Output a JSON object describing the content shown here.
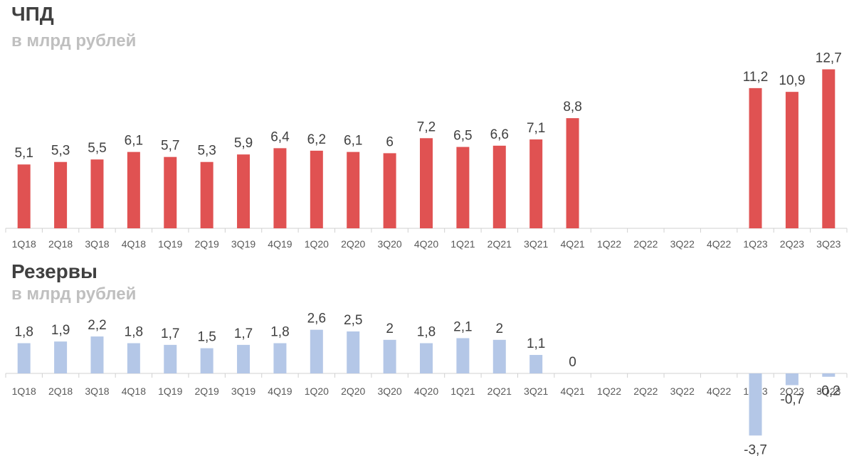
{
  "charts": {
    "top": {
      "title": "ЧПД",
      "subtitle": "в млрд рублей"
    },
    "bottom": {
      "title": "Резервы",
      "subtitle": "в млрд рублей"
    }
  },
  "colors": {
    "top_bar": "#e05252",
    "bottom_bar": "#b4c7e7",
    "axis": "#d0d0d0"
  },
  "chart_data": [
    {
      "type": "bar",
      "title": "ЧПД",
      "subtitle": "в млрд рублей",
      "categories": [
        "1Q18",
        "2Q18",
        "3Q18",
        "4Q18",
        "1Q19",
        "2Q19",
        "3Q19",
        "4Q19",
        "1Q20",
        "2Q20",
        "3Q20",
        "4Q20",
        "1Q21",
        "2Q21",
        "3Q21",
        "4Q21",
        "1Q22",
        "2Q22",
        "3Q22",
        "4Q22",
        "1Q23",
        "2Q23",
        "3Q23"
      ],
      "values": [
        5.1,
        5.3,
        5.5,
        6.1,
        5.7,
        5.3,
        5.9,
        6.4,
        6.2,
        6.1,
        6,
        7.2,
        6.5,
        6.6,
        7.1,
        8.8,
        null,
        null,
        null,
        null,
        11.2,
        10.9,
        12.7
      ],
      "value_labels": [
        "5,1",
        "5,3",
        "5,5",
        "6,1",
        "5,7",
        "5,3",
        "5,9",
        "6,4",
        "6,2",
        "6,1",
        "6",
        "7,2",
        "6,5",
        "6,6",
        "7,1",
        "8,8",
        "",
        "",
        "",
        "",
        "11,2",
        "10,9",
        "12,7"
      ],
      "grid": false,
      "legend": "none"
    },
    {
      "type": "bar",
      "title": "Резервы",
      "subtitle": "в млрд рублей",
      "categories": [
        "1Q18",
        "2Q18",
        "3Q18",
        "4Q18",
        "1Q19",
        "2Q19",
        "3Q19",
        "4Q19",
        "1Q20",
        "2Q20",
        "3Q20",
        "4Q20",
        "1Q21",
        "2Q21",
        "3Q21",
        "4Q21",
        "1Q22",
        "2Q22",
        "3Q22",
        "4Q22",
        "1Q23",
        "2Q23",
        "3Q23"
      ],
      "values": [
        1.8,
        1.9,
        2.2,
        1.8,
        1.7,
        1.5,
        1.7,
        1.8,
        2.6,
        2.5,
        2,
        1.8,
        2.1,
        2,
        1.1,
        0,
        null,
        null,
        null,
        null,
        -3.7,
        -0.7,
        -0.2
      ],
      "value_labels": [
        "1,8",
        "1,9",
        "2,2",
        "1,8",
        "1,7",
        "1,5",
        "1,7",
        "1,8",
        "2,6",
        "2,5",
        "2",
        "1,8",
        "2,1",
        "2",
        "1,1",
        "0",
        "",
        "",
        "",
        "",
        "-3,7",
        "-0,7",
        "-0,2"
      ],
      "grid": false,
      "legend": "none"
    }
  ]
}
